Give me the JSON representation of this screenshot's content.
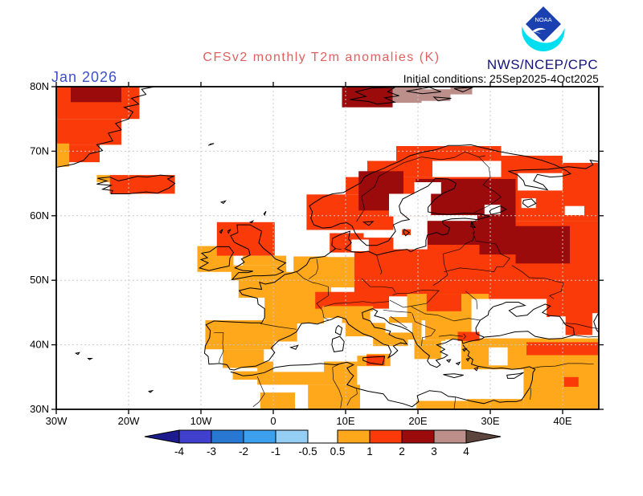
{
  "header": {
    "date_label": "Jan 2026",
    "title": "CFSv2 monthly T2m anomalies (K)",
    "agency": "NWS/NCEP/CPC",
    "initial_conditions": "Initial conditions: 25Sep2025-4Oct2025",
    "logo_text": "NOAA"
  },
  "colors": {
    "title_text": "#e06060",
    "date_text": "#3c50c8",
    "agency_text": "#14147a",
    "logo_diamond": "#1b41b0",
    "logo_crescent": "#00dff0",
    "grid_line": "#c9c9c9",
    "coast_line": "#000000"
  },
  "chart_data": {
    "type": "heatmap",
    "title": "CFSv2 monthly T2m anomalies (K)",
    "variable": "2-meter temperature anomaly",
    "units": "K",
    "forecast_month": "Jan 2026",
    "initial_conditions": "25Sep2025-4Oct2025",
    "source": "NWS/NCEP/CPC",
    "lon_range": [
      -30,
      45
    ],
    "lat_range": [
      30,
      80
    ],
    "grid": true,
    "lat_ticks": [
      {
        "label": "80N",
        "lat": 80
      },
      {
        "label": "70N",
        "lat": 70
      },
      {
        "label": "60N",
        "lat": 60
      },
      {
        "label": "50N",
        "lat": 50
      },
      {
        "label": "40N",
        "lat": 40
      },
      {
        "label": "30N",
        "lat": 30
      }
    ],
    "lon_ticks": [
      {
        "label": "30W",
        "lon": -30
      },
      {
        "label": "20W",
        "lon": -20
      },
      {
        "label": "10W",
        "lon": -10
      },
      {
        "label": "0",
        "lon": 0
      },
      {
        "label": "10E",
        "lon": 10
      },
      {
        "label": "20E",
        "lon": 20
      },
      {
        "label": "30E",
        "lon": 30
      },
      {
        "label": "40E",
        "lon": 40
      }
    ],
    "legend": {
      "tick_labels": [
        "-4",
        "-3",
        "-2",
        "-1",
        "-0.5",
        "0.5",
        "1",
        "2",
        "3",
        "4"
      ],
      "cold_colors": [
        "#4040cc",
        "#2878d2",
        "#3da0ee",
        "#95cef5"
      ],
      "warm_colors": [
        "#ffa81c",
        "#fa3a08",
        "#9c0b0c",
        "#bc8f8b"
      ],
      "left_arrow_color": "#1c1c8c",
      "right_arrow_color": "#5c453c",
      "gap_range": [
        "-0.5",
        "0.5"
      ]
    },
    "classes": {
      "o": {
        "anomaly_range_K": "0.5 to 1",
        "color": "#ffa81c"
      },
      "r": {
        "anomaly_range_K": "1 to 2",
        "color": "#fa3a08"
      },
      "d": {
        "anomaly_range_K": "2 to 3",
        "color": "#9c0b0c"
      },
      "t": {
        "anomaly_range_K": "3 to 4",
        "color": "#bc8f8b"
      },
      "w": {
        "anomaly_range_K": "none / sea",
        "color": "#ffffff"
      }
    },
    "cells": [
      [
        -30,
        75,
        -18.5,
        80,
        "r"
      ],
      [
        -30,
        71,
        -21,
        75,
        "r"
      ],
      [
        -30,
        68.3,
        -24,
        71,
        "r"
      ],
      [
        -28,
        77.6,
        -21,
        80,
        "d"
      ],
      [
        -30,
        67.6,
        -28.2,
        71.2,
        "o"
      ],
      [
        -22.6,
        63.4,
        -13.6,
        66.3,
        "r"
      ],
      [
        -24.4,
        65.2,
        -22.6,
        66.3,
        "o"
      ],
      [
        9.5,
        76.8,
        16.5,
        80,
        "d"
      ],
      [
        16.5,
        77.5,
        20.5,
        80,
        "t"
      ],
      [
        20.5,
        77.8,
        24.5,
        79.6,
        "t"
      ],
      [
        24.5,
        78.8,
        27.5,
        80,
        "t"
      ],
      [
        -10.5,
        51.3,
        -5.5,
        55.3,
        "o"
      ],
      [
        -7.8,
        53.8,
        0.2,
        59,
        "r"
      ],
      [
        -4.2,
        52.3,
        1.8,
        53.8,
        "o"
      ],
      [
        -5.8,
        50,
        1.8,
        52.3,
        "o"
      ],
      [
        -1.2,
        43.3,
        8,
        49,
        "o"
      ],
      [
        -4.8,
        47.3,
        8,
        51.3,
        "o"
      ],
      [
        2.8,
        50.8,
        7.5,
        53.7,
        "o"
      ],
      [
        6.5,
        48.9,
        11.2,
        53.6,
        "o"
      ],
      [
        -9.4,
        39.3,
        -1.5,
        43.8,
        "o"
      ],
      [
        -1.5,
        40.5,
        3.3,
        43.8,
        "o"
      ],
      [
        -7,
        36.4,
        -1.3,
        39.3,
        "o"
      ],
      [
        -1.5,
        39.3,
        0.2,
        40.5,
        "o"
      ],
      [
        7.8,
        54.3,
        12.5,
        57.3,
        "r"
      ],
      [
        11.2,
        47.5,
        21,
        56.6,
        "r"
      ],
      [
        5.8,
        45.6,
        16,
        48.2,
        "r"
      ],
      [
        21,
        44.3,
        45,
        59.2,
        "r"
      ],
      [
        4.6,
        57.8,
        12,
        63.3,
        "r"
      ],
      [
        10,
        63.3,
        18,
        66,
        "r"
      ],
      [
        13,
        66,
        22,
        68.5,
        "r"
      ],
      [
        17,
        68.5,
        31.5,
        70.8,
        "r"
      ],
      [
        12,
        57.8,
        31.5,
        66,
        "r"
      ],
      [
        31.5,
        59.2,
        40,
        69.3,
        "r"
      ],
      [
        40,
        59.2,
        45,
        68.2,
        "r"
      ],
      [
        11.8,
        60.8,
        18,
        66.9,
        "d"
      ],
      [
        19.7,
        55.5,
        33.5,
        65.7,
        "d"
      ],
      [
        28.5,
        54,
        33.5,
        56,
        "d"
      ],
      [
        33.5,
        52.6,
        41,
        58.4,
        "d"
      ],
      [
        6.8,
        43.4,
        13.8,
        46,
        "o"
      ],
      [
        10,
        41.3,
        15.5,
        43.6,
        "o"
      ],
      [
        13.8,
        39.8,
        18.6,
        42.1,
        "o"
      ],
      [
        11.6,
        36.7,
        16.2,
        38.6,
        "o"
      ],
      [
        12.9,
        36.8,
        15.4,
        38.4,
        "r"
      ],
      [
        15.8,
        40.8,
        20.5,
        44.3,
        "o"
      ],
      [
        18.5,
        43.8,
        29.8,
        47.9,
        "o"
      ],
      [
        21.2,
        45.2,
        26,
        47.9,
        "r"
      ],
      [
        21,
        40.8,
        28.8,
        43.8,
        "o"
      ],
      [
        19.5,
        37.8,
        23.8,
        40.8,
        "o"
      ],
      [
        -2.2,
        33.8,
        11.6,
        37.4,
        "o"
      ],
      [
        4.8,
        30,
        12,
        33.8,
        "o"
      ],
      [
        -1.8,
        30,
        3,
        32.6,
        "o"
      ],
      [
        -5.6,
        34.6,
        -2.2,
        35.9,
        "o"
      ],
      [
        19.8,
        30,
        26.8,
        31.3,
        "o"
      ],
      [
        16.6,
        54.8,
        21.3,
        59.9,
        "w"
      ],
      [
        16,
        59.9,
        21.8,
        63.4,
        "w"
      ],
      [
        19.5,
        63.4,
        23.2,
        65.2,
        "w"
      ],
      [
        21.3,
        59.2,
        28.2,
        60.1,
        "w"
      ],
      [
        29.2,
        60.2,
        31.4,
        61.7,
        "w"
      ],
      [
        34.3,
        61.2,
        36.3,
        62.7,
        "w"
      ],
      [
        33.8,
        63.9,
        40,
        66.6,
        "w"
      ],
      [
        40.3,
        60.1,
        43,
        61.5,
        "w"
      ],
      [
        10.8,
        54.5,
        13.2,
        56.3,
        "w"
      ],
      [
        0,
        35.8,
        7,
        40.2,
        "w"
      ],
      [
        8.3,
        38.3,
        12.9,
        41.3,
        "w"
      ],
      [
        7,
        43,
        9.5,
        44.15,
        "w"
      ],
      [
        13.4,
        43.4,
        16,
        45.2,
        "w"
      ],
      [
        15.5,
        41.9,
        19.2,
        43.4,
        "w"
      ],
      [
        23.2,
        35.6,
        26.6,
        40.6,
        "w"
      ],
      [
        26,
        31.6,
        34.6,
        36.3,
        "w"
      ],
      [
        27.4,
        41,
        41.5,
        47.1,
        "w"
      ],
      [
        26,
        36.2,
        45,
        41,
        "o"
      ],
      [
        34.6,
        30,
        45,
        37.6,
        "o"
      ],
      [
        26.8,
        30,
        34.6,
        31.6,
        "o"
      ],
      [
        29.8,
        36.8,
        32.4,
        39.6,
        "w"
      ],
      [
        25.5,
        40.6,
        28.5,
        42,
        "r"
      ],
      [
        35,
        38.4,
        45,
        40.4,
        "r"
      ],
      [
        40.2,
        33.5,
        42.2,
        35,
        "r"
      ],
      [
        37.8,
        44.3,
        45,
        47.1,
        "r"
      ],
      [
        40.4,
        41.5,
        45,
        44.4,
        "r"
      ],
      [
        38.2,
        42.9,
        40.4,
        44.4,
        "w"
      ],
      [
        44.1,
        41.5,
        45,
        44.9,
        "w"
      ],
      [
        17.8,
        57,
        19,
        57.9,
        "r"
      ]
    ]
  }
}
